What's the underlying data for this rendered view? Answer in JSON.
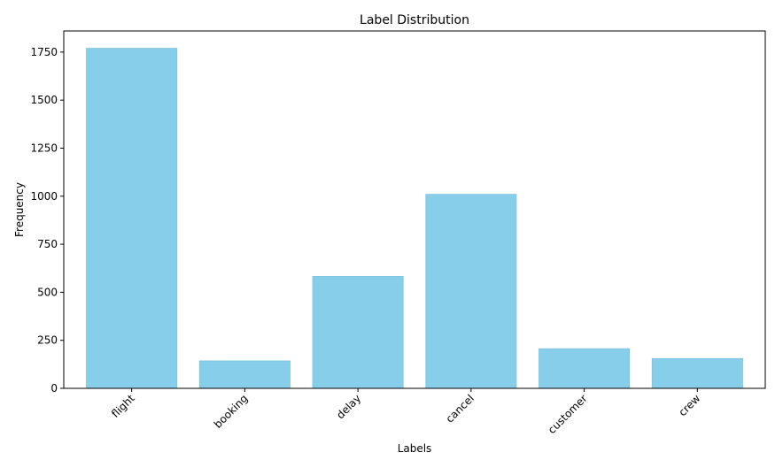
{
  "chart_data": {
    "type": "bar",
    "title": "Label Distribution",
    "xlabel": "Labels",
    "ylabel": "Frequency",
    "categories": [
      "flight",
      "booking",
      "delay",
      "cancel",
      "customer",
      "crew"
    ],
    "values": [
      1770,
      143,
      583,
      1010,
      206,
      155
    ],
    "ylim": [
      0,
      1860
    ],
    "yticks": [
      0,
      250,
      500,
      750,
      1000,
      1250,
      1500,
      1750
    ],
    "bar_color": "#87ceeb",
    "grid": false,
    "legend": "none"
  }
}
